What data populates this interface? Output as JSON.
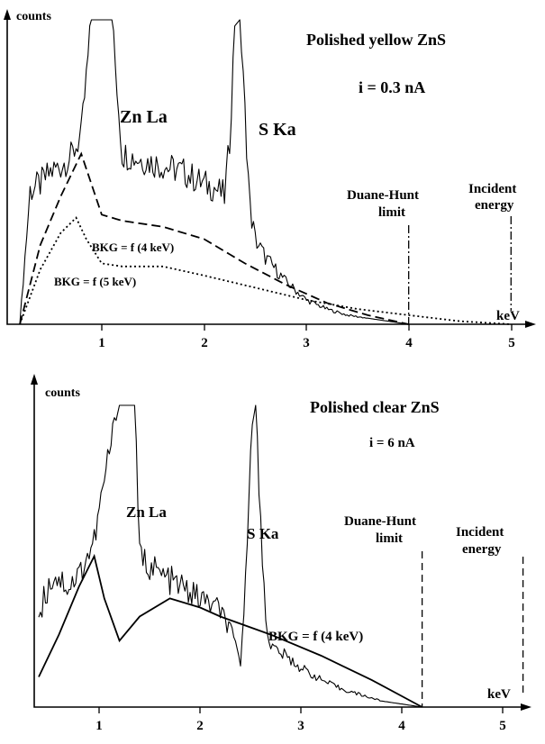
{
  "chart_data": [
    {
      "type": "line",
      "title": "Polished yellow ZnS",
      "subtitle": "i = 0.3 nA",
      "ylabel": "counts",
      "xlabel": "keV",
      "xlim": [
        0.2,
        5.3
      ],
      "xticks": [
        "1",
        "2",
        "3",
        "4",
        "5"
      ],
      "annotations": {
        "peak1": "Zn La",
        "peak2": "S Ka",
        "dh_line1": "Duane-Hunt",
        "dh_line2": "limit",
        "inc_line1": "Incident",
        "inc_line2": "energy",
        "bkg1": "BKG = f (4 keV)",
        "bkg2": "BKG = f (5 keV)"
      },
      "duane_hunt_keV": 4.0,
      "incident_keV": 5.0,
      "spectrum": {
        "x": [
          0.2,
          0.3,
          0.4,
          0.5,
          0.6,
          0.7,
          0.8,
          0.9,
          1.0,
          1.1,
          1.2,
          1.4,
          1.6,
          1.8,
          2.0,
          2.1,
          2.2,
          2.25,
          2.3,
          2.35,
          2.4,
          2.45,
          2.5,
          2.6,
          2.8,
          3.0,
          3.2,
          3.4,
          3.6,
          3.8,
          4.0
        ],
        "y": [
          0,
          44,
          46,
          50,
          52,
          55,
          62,
          100,
          100,
          100,
          56,
          54,
          52,
          50,
          46,
          45,
          42,
          60,
          98,
          100,
          70,
          38,
          28,
          22,
          14,
          8,
          5,
          3,
          2,
          1,
          0
        ]
      },
      "series": [
        {
          "name": "BKG = f (4 keV)",
          "style": "dashed",
          "x": [
            0.2,
            0.4,
            0.6,
            0.8,
            1.0,
            1.2,
            1.6,
            2.0,
            2.4,
            2.8,
            3.2,
            3.6,
            4.0
          ],
          "y": [
            0,
            26,
            42,
            56,
            36,
            34,
            32,
            28,
            20,
            13,
            7,
            3,
            0
          ]
        },
        {
          "name": "BKG = f (5 keV)",
          "style": "dotted",
          "x": [
            0.2,
            0.4,
            0.6,
            0.75,
            0.85,
            1.0,
            1.2,
            1.6,
            2.0,
            2.5,
            3.0,
            3.5,
            4.0,
            4.5,
            5.0
          ],
          "y": [
            0,
            18,
            30,
            35,
            28,
            20,
            19,
            19,
            16,
            12,
            8,
            5,
            3,
            1,
            0
          ]
        }
      ]
    },
    {
      "type": "line",
      "title": "Polished clear ZnS",
      "subtitle": "i = 6 nA",
      "ylabel": "counts",
      "xlabel": "keV",
      "xlim": [
        0.2,
        5.3
      ],
      "xticks": [
        "1",
        "2",
        "3",
        "4",
        "5"
      ],
      "annotations": {
        "peak1": "Zn La",
        "peak2": "S Ka",
        "dh_line1": "Duane-Hunt",
        "dh_line2": "limit",
        "inc_line1": "Incident",
        "inc_line2": "energy",
        "bkg1": "BKG = f (4 keV)"
      },
      "duane_hunt_keV": 4.0,
      "incident_keV": 5.0,
      "spectrum": {
        "x": [
          0.2,
          0.25,
          0.35,
          0.5,
          0.6,
          0.75,
          0.85,
          0.9,
          1.0,
          1.1,
          1.15,
          1.2,
          1.4,
          1.6,
          1.8,
          2.0,
          2.1,
          2.2,
          2.25,
          2.3,
          2.35,
          2.4,
          2.45,
          2.5,
          2.6,
          2.8,
          3.0,
          3.2,
          3.4,
          3.6,
          3.8,
          4.0
        ],
        "y": [
          30,
          36,
          44,
          40,
          44,
          55,
          75,
          85,
          100,
          100,
          100,
          50,
          44,
          40,
          36,
          32,
          25,
          15,
          40,
          90,
          100,
          60,
          30,
          20,
          18,
          13,
          9,
          6,
          4,
          2,
          1,
          0
        ]
      },
      "series": [
        {
          "name": "BKG = f (4 keV)",
          "style": "solid",
          "x": [
            0.2,
            0.4,
            0.6,
            0.75,
            0.85,
            1.0,
            1.2,
            1.5,
            1.8,
            2.0,
            2.5,
            3.0,
            3.5,
            4.0
          ],
          "y": [
            10,
            24,
            40,
            50,
            36,
            22,
            30,
            36,
            33,
            30,
            24,
            17,
            9,
            0
          ]
        }
      ]
    }
  ]
}
